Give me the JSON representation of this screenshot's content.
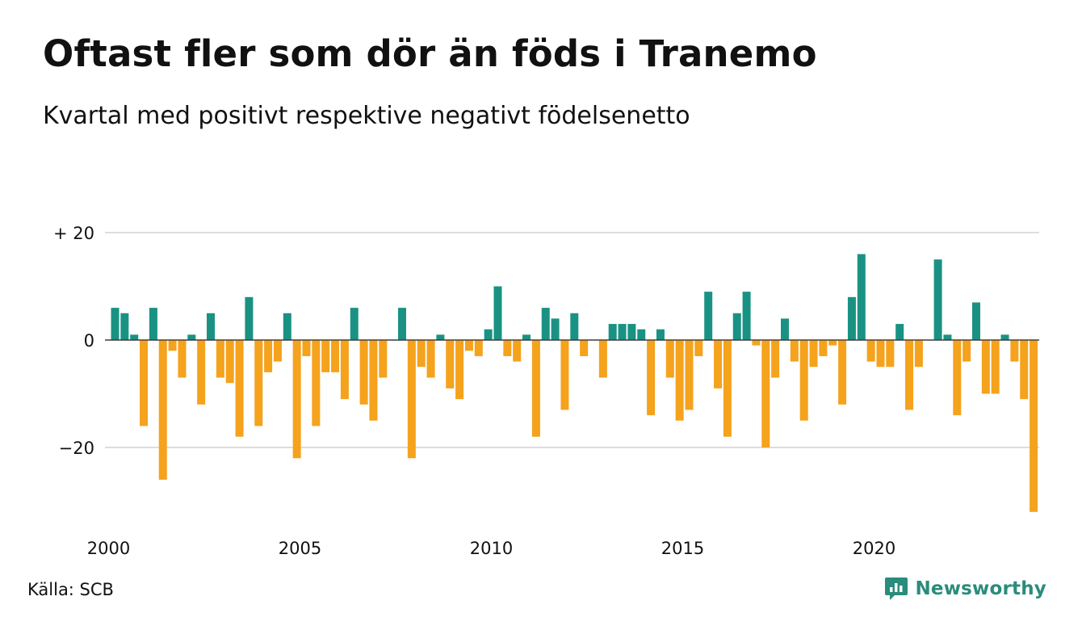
{
  "title": "Oftast fler som dör än föds i Tranemo",
  "subtitle": "Kvartal med positivt respektive negativt födelsenetto",
  "source": "Källa: SCB",
  "brand": "Newsworthy",
  "colors": {
    "positive": "#1a9283",
    "negative": "#f5a21d",
    "grid": "#dddddd",
    "brand": "#2a8c7c"
  },
  "chart_data": {
    "type": "bar",
    "x_start": 2000.0,
    "x_step": 0.25,
    "x_ticks": [
      2000,
      2005,
      2010,
      2015,
      2020
    ],
    "x_tick_labels": [
      "2000",
      "2005",
      "2010",
      "2015",
      "2020"
    ],
    "y_ticks": [
      20,
      0,
      -20
    ],
    "y_tick_labels": [
      "+ 20",
      "0",
      "−20"
    ],
    "ylim": [
      -32,
      20
    ],
    "grid": true,
    "values": [
      6,
      5,
      1,
      -16,
      6,
      -26,
      -2,
      -7,
      1,
      -12,
      5,
      -7,
      -8,
      -18,
      8,
      -16,
      -6,
      -4,
      5,
      -22,
      -3,
      -16,
      -6,
      -6,
      -11,
      6,
      -12,
      -15,
      -7,
      0,
      6,
      -22,
      -5,
      -7,
      1,
      -9,
      -11,
      -2,
      -3,
      2,
      10,
      -3,
      -4,
      1,
      -18,
      6,
      4,
      -13,
      5,
      -3,
      0,
      -7,
      3,
      3,
      3,
      2,
      -14,
      2,
      -7,
      -15,
      -13,
      -3,
      9,
      -9,
      -18,
      5,
      9,
      -1,
      -20,
      -7,
      4,
      -4,
      -15,
      -5,
      -3,
      -1,
      -12,
      8,
      16,
      -4,
      -5,
      -5,
      3,
      -13,
      -5,
      0,
      15,
      1,
      -14,
      -4,
      7,
      -10,
      -10,
      1,
      -4,
      -11,
      -32
    ]
  }
}
